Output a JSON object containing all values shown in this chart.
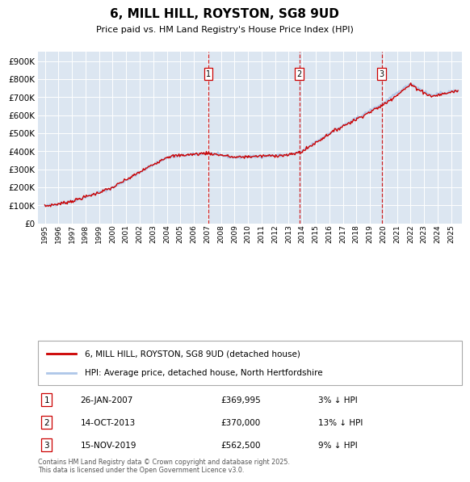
{
  "title": "6, MILL HILL, ROYSTON, SG8 9UD",
  "subtitle": "Price paid vs. HM Land Registry's House Price Index (HPI)",
  "plot_bg_color": "#dce6f1",
  "hpi_color": "#aec6e8",
  "price_color": "#cc0000",
  "sale_marker_color": "#cc0000",
  "sale_vline_color": "#cc0000",
  "sales": [
    {
      "num": 1,
      "date": "26-JAN-2007",
      "price": 369995,
      "pct": "3%",
      "x_year": 2007.07
    },
    {
      "num": 2,
      "date": "14-OCT-2013",
      "price": 370000,
      "pct": "13%",
      "x_year": 2013.79
    },
    {
      "num": 3,
      "date": "15-NOV-2019",
      "price": 562500,
      "pct": "9%",
      "x_year": 2019.88
    }
  ],
  "legend_line1": "6, MILL HILL, ROYSTON, SG8 9UD (detached house)",
  "legend_line2": "HPI: Average price, detached house, North Hertfordshire",
  "footnote": "Contains HM Land Registry data © Crown copyright and database right 2025.\nThis data is licensed under the Open Government Licence v3.0.",
  "xlim": [
    1994.5,
    2025.8
  ],
  "ylim": [
    0,
    950000
  ],
  "y_ticks": [
    0,
    100000,
    200000,
    300000,
    400000,
    500000,
    600000,
    700000,
    800000,
    900000
  ]
}
